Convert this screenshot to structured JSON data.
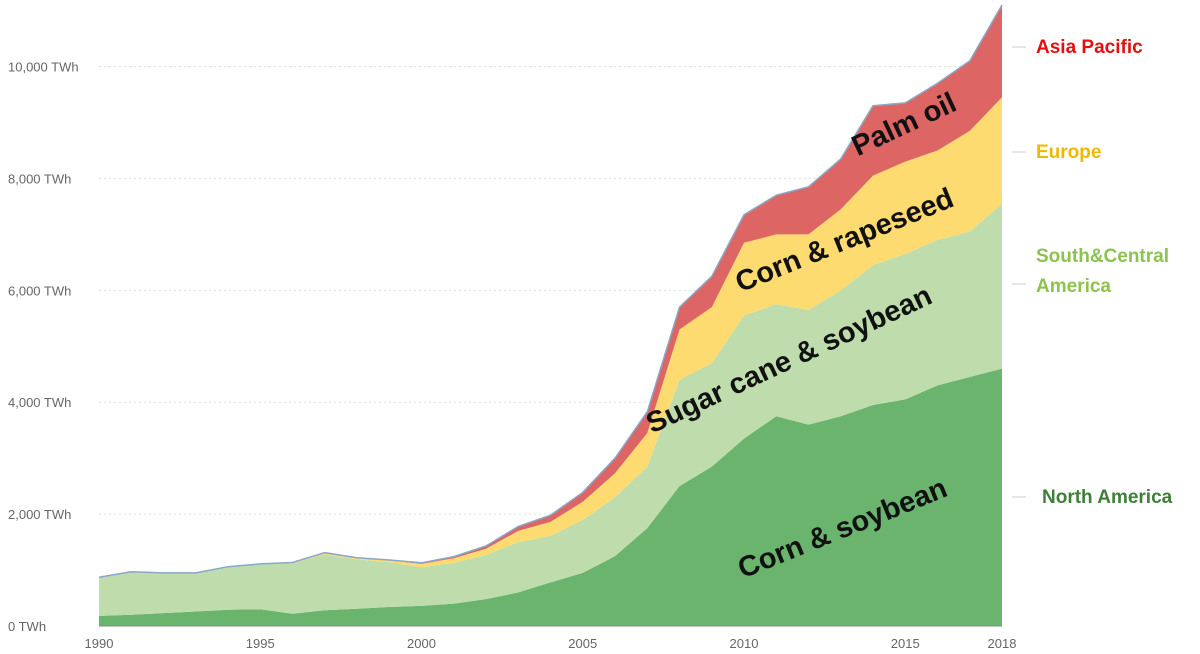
{
  "chart_data": {
    "type": "area",
    "stacked": true,
    "title": "",
    "xlabel": "",
    "ylabel": "",
    "x": [
      1990,
      1991,
      1992,
      1993,
      1994,
      1995,
      1996,
      1997,
      1998,
      1999,
      2000,
      2001,
      2002,
      2003,
      2004,
      2005,
      2006,
      2007,
      2008,
      2009,
      2010,
      2011,
      2012,
      2013,
      2014,
      2015,
      2016,
      2017,
      2018
    ],
    "xlim": [
      1990,
      2018
    ],
    "ylim": [
      0,
      11100
    ],
    "x_ticks": [
      1990,
      1995,
      2000,
      2005,
      2010,
      2015,
      2018
    ],
    "y_ticks": [
      {
        "value": 0,
        "label": "0 TWh"
      },
      {
        "value": 2000,
        "label": "2,000 TWh"
      },
      {
        "value": 4000,
        "label": "4,000 TWh"
      },
      {
        "value": 6000,
        "label": "6,000 TWh"
      },
      {
        "value": 8000,
        "label": "8,000 TWh"
      },
      {
        "value": 10000,
        "label": "10,000 TWh"
      }
    ],
    "grid": true,
    "series": [
      {
        "name": "North America",
        "crop_label": "Corn & soybean",
        "color": "#6ab46e",
        "label_color": "#3f7f3a",
        "values": [
          180,
          200,
          230,
          260,
          290,
          300,
          220,
          280,
          310,
          340,
          360,
          400,
          480,
          600,
          780,
          950,
          1250,
          1750,
          2500,
          2850,
          3350,
          3750,
          3600,
          3750,
          3950,
          4050,
          4300,
          4450,
          4600
        ]
      },
      {
        "name": "South&Central America",
        "crop_label": "Sugar cane & soybean",
        "color": "#bfddac",
        "label_color": "#8cc34e",
        "values": [
          690,
          770,
          720,
          690,
          770,
          810,
          900,
          1000,
          880,
          800,
          690,
          730,
          790,
          900,
          830,
          950,
          1050,
          1100,
          1900,
          1850,
          2200,
          2000,
          2050,
          2250,
          2500,
          2600,
          2600,
          2600,
          2950
        ]
      },
      {
        "name": "Europe",
        "crop_label": "Corn & rapeseed",
        "color": "#fddb70",
        "label_color": "#f2b700",
        "values": [
          0,
          0,
          0,
          0,
          0,
          0,
          10,
          20,
          20,
          30,
          60,
          80,
          110,
          200,
          250,
          320,
          430,
          600,
          900,
          1000,
          1300,
          1250,
          1350,
          1450,
          1600,
          1650,
          1600,
          1800,
          1900
        ]
      },
      {
        "name": "Asia Pacific",
        "crop_label": "Palm oil",
        "color": "#dd6563",
        "label_color": "#e21010",
        "values": [
          0,
          0,
          0,
          0,
          0,
          0,
          5,
          10,
          10,
          10,
          20,
          30,
          50,
          80,
          120,
          170,
          270,
          380,
          400,
          550,
          500,
          700,
          850,
          900,
          1250,
          1050,
          1200,
          1250,
          1650
        ]
      }
    ]
  }
}
